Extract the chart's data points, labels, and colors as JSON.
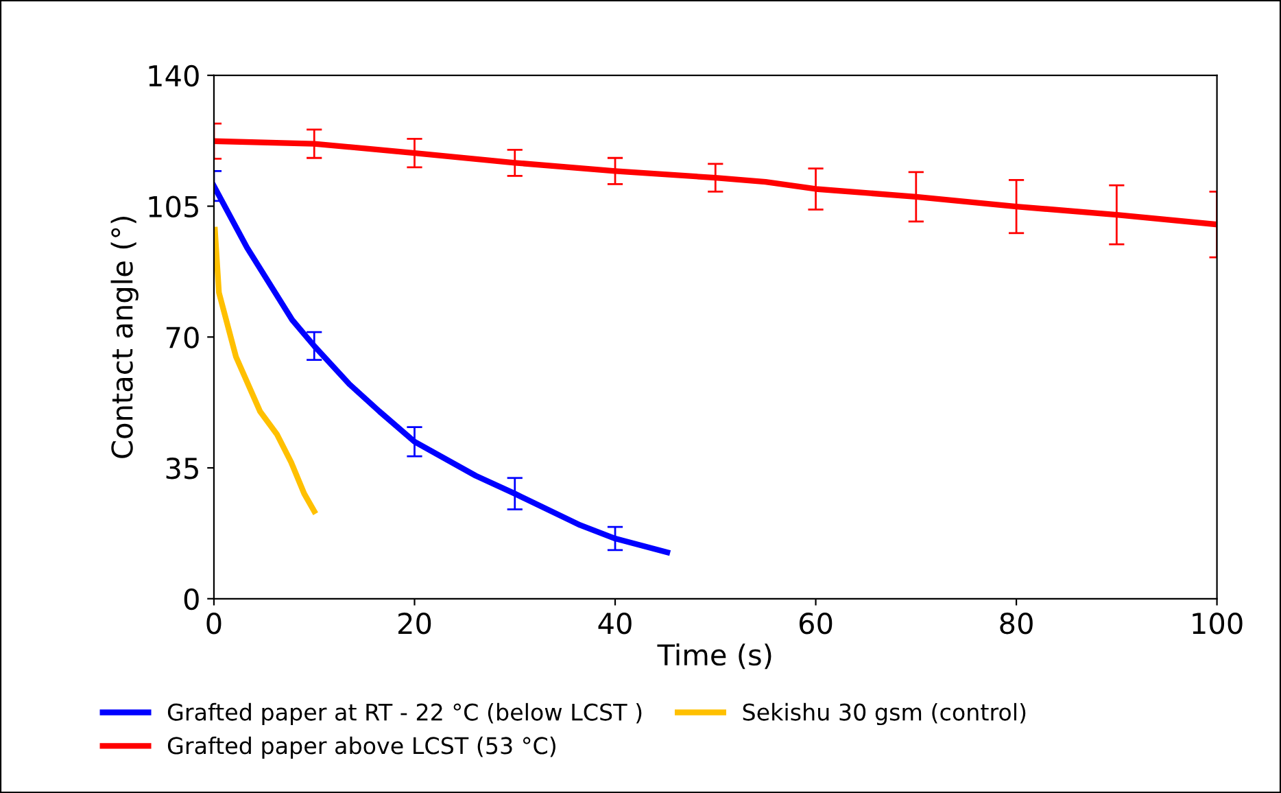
{
  "chart_data": {
    "type": "line",
    "xlabel": "Time (s)",
    "ylabel": "Contact angle (°)",
    "xlim": [
      0,
      100
    ],
    "xticks": [
      0,
      20,
      40,
      60,
      80,
      100
    ],
    "ylim": [
      0,
      140
    ],
    "yticks": [
      0,
      35,
      70,
      105,
      140
    ],
    "grid": false,
    "legend": "bottom",
    "marker": "none",
    "line_style": "solid",
    "series": [
      {
        "name": "Grafted paper at RT - 22 °C (below LCST )",
        "color": "#0000ff",
        "x": [
          0,
          3.3,
          7.8,
          10,
          13.5,
          16.5,
          20,
          26.1,
          30,
          36.5,
          40,
          45.2
        ],
        "values": [
          110.4,
          93.9,
          74.6,
          67.6,
          57.4,
          50.1,
          42.0,
          32.9,
          28.1,
          19.7,
          16.1,
          12.4
        ],
        "errors": [
          4,
          null,
          null,
          3.7,
          null,
          null,
          3.9,
          null,
          4.2,
          null,
          3.1,
          null
        ]
      },
      {
        "name": "Grafted paper above LCST (53 °C)",
        "color": "#ff0000",
        "x": [
          0,
          10,
          20,
          30,
          40,
          50,
          55,
          60,
          70,
          80,
          90,
          100
        ],
        "values": [
          122.4,
          121.7,
          119.2,
          116.6,
          114.4,
          112.6,
          111.5,
          109.6,
          107.5,
          104.9,
          102.7,
          100.1
        ],
        "errors": [
          4.7,
          3.8,
          3.8,
          3.5,
          3.5,
          3.7,
          null,
          5.5,
          6.6,
          7.1,
          7.9,
          8.8
        ]
      },
      {
        "name": "Sekishu 30 gsm (control)",
        "color": "#ffc000",
        "x": [
          0.1,
          0.5,
          2.2,
          4.6,
          6.3,
          7.7,
          9.0,
          10.0
        ],
        "values": [
          98.7,
          81.9,
          64.7,
          50.1,
          43.9,
          36.5,
          28.1,
          23.4
        ]
      }
    ]
  }
}
